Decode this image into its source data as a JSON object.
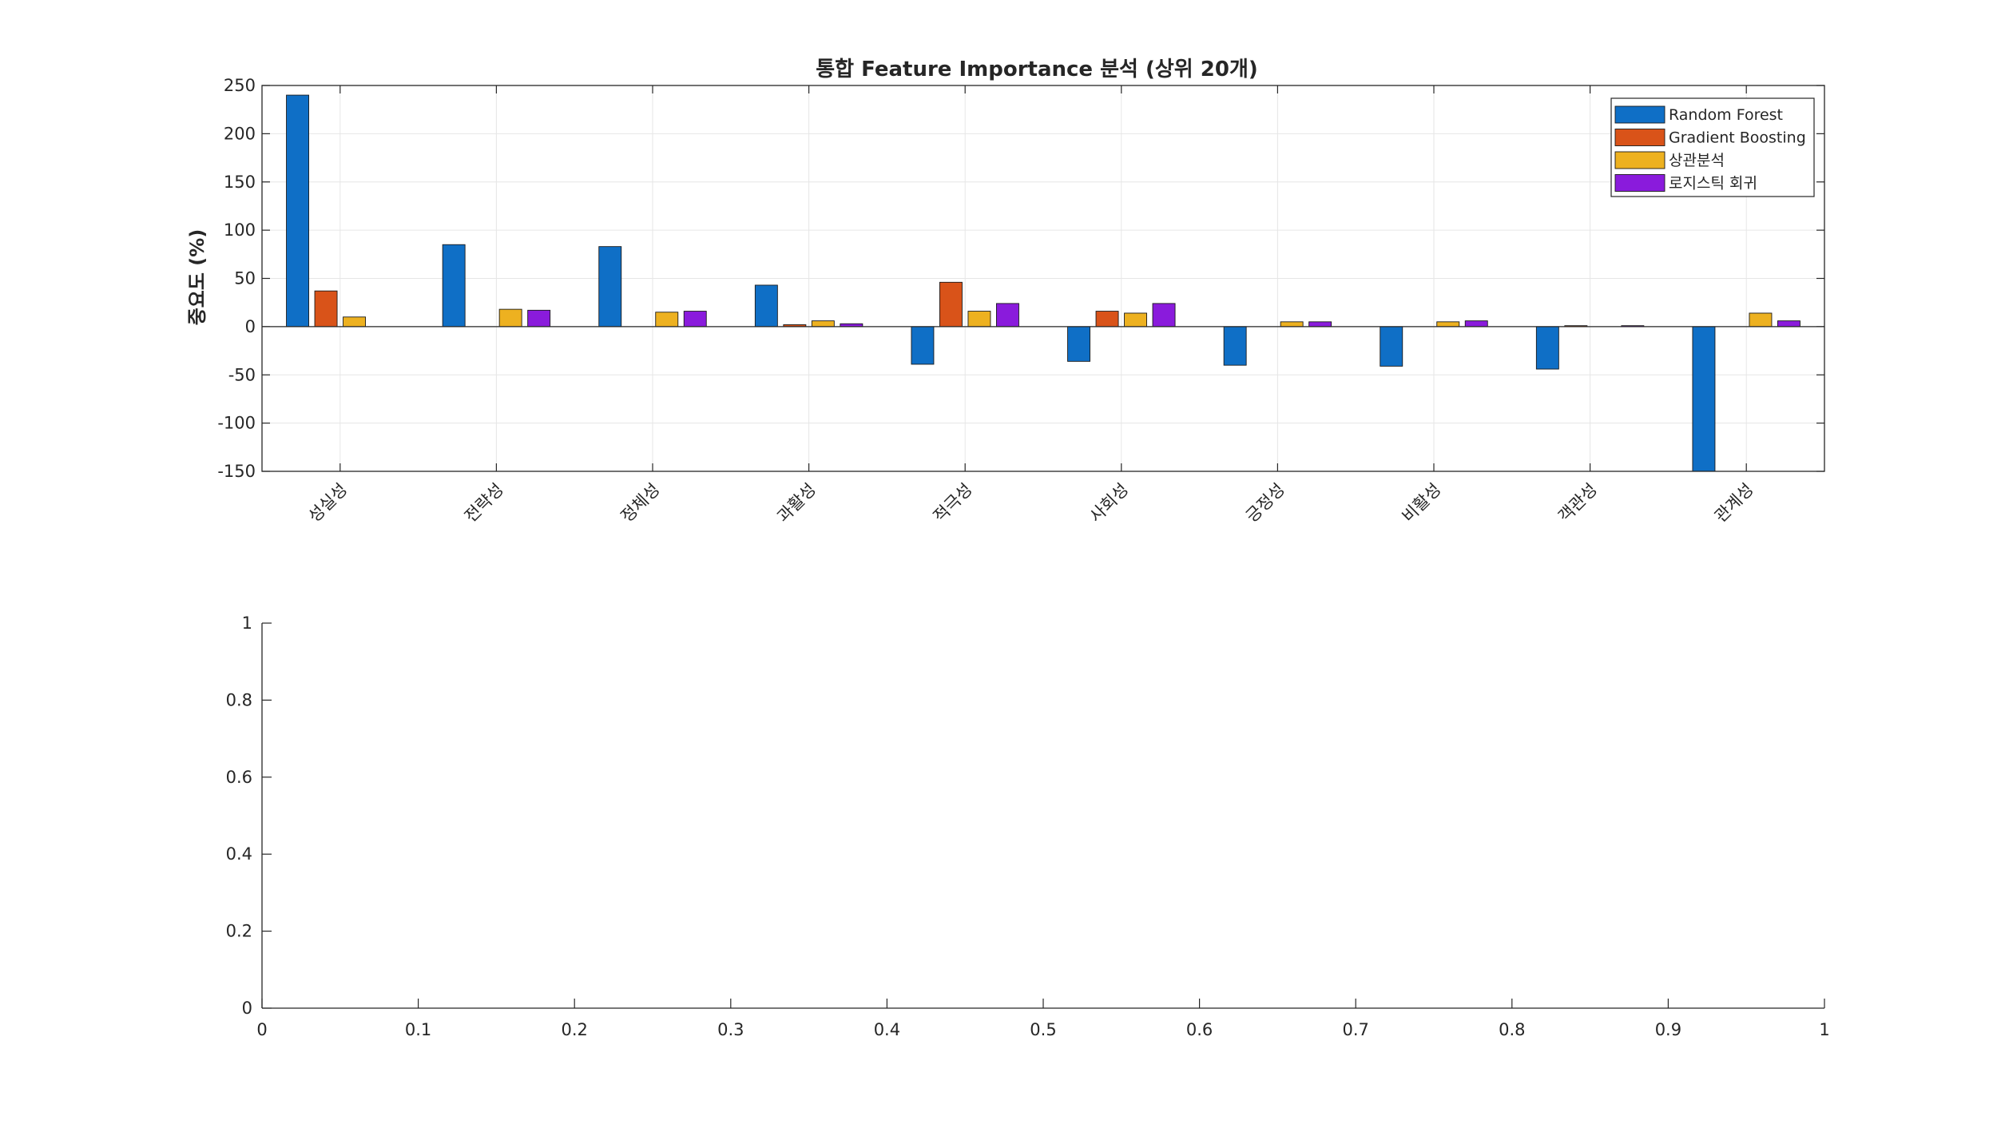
{
  "chart_data": [
    {
      "type": "bar",
      "title": "통합 Feature Importance 분석 (상위 20개)",
      "xlabel": "",
      "ylabel": "중요도 (%)",
      "ylim": [
        -150,
        250
      ],
      "yticks": [
        250,
        200,
        150,
        100,
        50,
        0,
        -50,
        -100,
        -150
      ],
      "grid": true,
      "legend_position": "top-right",
      "categories": [
        "성실성",
        "전략성",
        "정체성",
        "과활성",
        "적극성",
        "사회성",
        "긍정성",
        "비활성",
        "객관성",
        "관계성"
      ],
      "series": [
        {
          "name": "Random Forest",
          "color": "#0f6fc6",
          "values": [
            240,
            85,
            83,
            43,
            -39,
            -36,
            -40,
            -41,
            -44,
            -150
          ]
        },
        {
          "name": "Gradient Boosting",
          "color": "#d95319",
          "values": [
            37,
            0,
            0,
            2,
            46,
            16,
            0,
            0,
            1,
            0
          ]
        },
        {
          "name": "상관분석",
          "color": "#edb120",
          "values": [
            10,
            18,
            15,
            6,
            16,
            14,
            5,
            5,
            0,
            14
          ]
        },
        {
          "name": "로지스틱 회귀",
          "color": "#8a1bdc",
          "values": [
            0,
            17,
            16,
            3,
            24,
            24,
            5,
            6,
            1,
            6
          ]
        }
      ]
    },
    {
      "type": "line",
      "title": "",
      "xlabel": "",
      "ylabel": "",
      "xlim": [
        0,
        1
      ],
      "ylim": [
        0,
        1
      ],
      "xticks": [
        "0",
        "0.1",
        "0.2",
        "0.3",
        "0.4",
        "0.5",
        "0.6",
        "0.7",
        "0.8",
        "0.9",
        "1"
      ],
      "yticks": [
        "0",
        "0.2",
        "0.4",
        "0.6",
        "0.8",
        "1"
      ],
      "grid": false,
      "series": []
    }
  ]
}
